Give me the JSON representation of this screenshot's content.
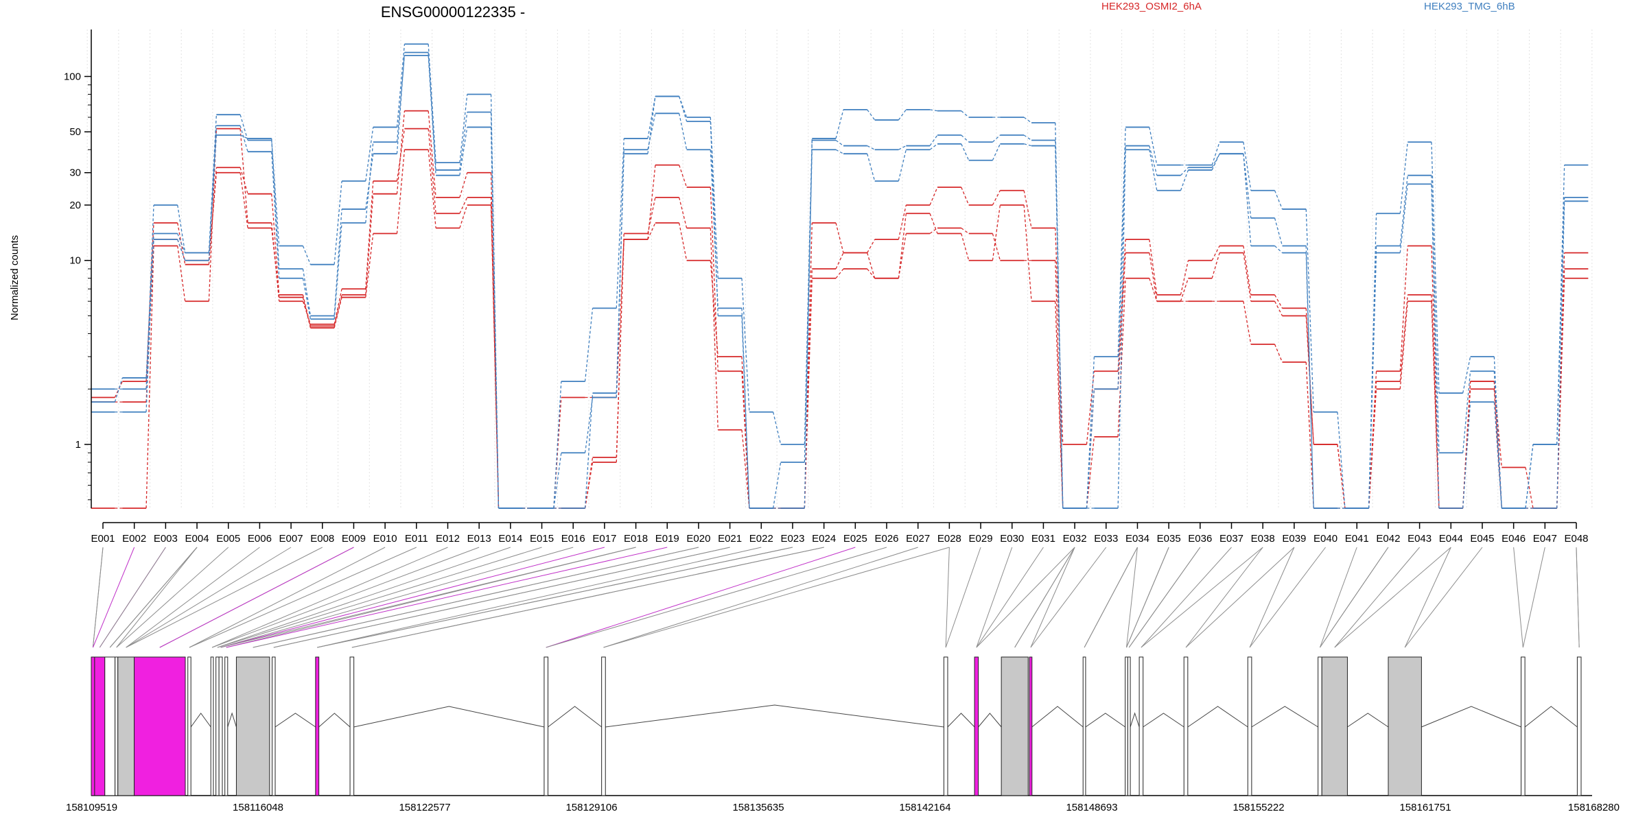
{
  "chart_data": {
    "type": "line",
    "title": "ENSG00000122335 -",
    "ylabel": "Normalized counts",
    "yscale": "log",
    "ylim": [
      0.45,
      180
    ],
    "y_ticks": [
      1,
      10,
      20,
      30,
      50,
      100
    ],
    "y_tick_labels": [
      "1",
      "10",
      "20",
      "30",
      "50",
      "100"
    ],
    "grid": "vertical dotted lines at exon bin boundaries",
    "legend_placement": "top",
    "categories": [
      "E001",
      "E002",
      "E003",
      "E004",
      "E005",
      "E006",
      "E007",
      "E008",
      "E009",
      "E010",
      "E011",
      "E012",
      "E013",
      "E014",
      "E015",
      "E016",
      "E017",
      "E018",
      "E019",
      "E020",
      "E021",
      "E022",
      "E023",
      "E024",
      "E025",
      "E026",
      "E027",
      "E028",
      "E029",
      "E030",
      "E031",
      "E032",
      "E033",
      "E034",
      "E035",
      "E036",
      "E037",
      "E038",
      "E039",
      "E040",
      "E041",
      "E042",
      "E043",
      "E044",
      "E045",
      "E046",
      "E047",
      "E048"
    ],
    "groups": [
      {
        "name": "HEK293_OSMI2_6hA",
        "color": "#d62728"
      },
      {
        "name": "HEK293_TMG_6hB",
        "color": "#3f7fbf"
      }
    ],
    "series": [
      {
        "group": 0,
        "values": [
          1.8,
          2.2,
          16,
          9.5,
          32,
          23,
          6.5,
          4.4,
          6.5,
          23,
          65,
          22,
          30,
          0.45,
          0.45,
          1.8,
          1.8,
          13,
          33,
          25,
          2.5,
          0.45,
          0.45,
          16,
          11,
          13,
          20,
          25,
          20,
          24,
          15,
          1.0,
          2.5,
          13,
          6.5,
          10,
          12,
          6.5,
          5.5,
          1.0,
          0.45,
          2.5,
          12,
          0.45,
          2.2,
          0.75,
          0.45,
          11
        ]
      },
      {
        "group": 0,
        "values": [
          1.7,
          1.7,
          13,
          10,
          30,
          15,
          6.3,
          4.3,
          6.3,
          14,
          40,
          15,
          20,
          0.45,
          0.45,
          0.45,
          0.8,
          14,
          22,
          15,
          1.2,
          0.45,
          0.45,
          8.0,
          9.0,
          8.0,
          14,
          15,
          14,
          10,
          10,
          0.45,
          1.1,
          8.0,
          6.0,
          8.0,
          11,
          6.0,
          5.0,
          1.0,
          0.45,
          2.2,
          6.5,
          0.45,
          2.2,
          0.45,
          0.45,
          9.0
        ]
      },
      {
        "group": 0,
        "values": [
          0.45,
          0.45,
          12,
          6.0,
          52,
          16,
          6.0,
          4.5,
          7.0,
          27,
          52,
          18,
          22,
          0.45,
          0.45,
          0.45,
          0.85,
          13,
          16,
          10,
          3.0,
          0.45,
          0.45,
          9.0,
          11,
          8.0,
          18,
          14,
          10,
          20,
          6.0,
          0.45,
          2.0,
          11,
          6.0,
          6.0,
          6.0,
          3.5,
          2.8,
          0.45,
          0.45,
          2.0,
          6.0,
          0.45,
          2.0,
          0.45,
          0.45,
          8.0
        ]
      },
      {
        "group": 1,
        "values": [
          2.0,
          2.0,
          20,
          11,
          62,
          45,
          12,
          9.5,
          27,
          53,
          150,
          34,
          80,
          0.45,
          0.45,
          2.2,
          5.5,
          46,
          78,
          60,
          8.0,
          1.5,
          1.0,
          46,
          66,
          58,
          66,
          65,
          60,
          60,
          56,
          0.45,
          3.0,
          53,
          33,
          33,
          44,
          24,
          19,
          1.5,
          0.45,
          18,
          44,
          1.9,
          3.0,
          0.45,
          1.0,
          33
        ]
      },
      {
        "group": 1,
        "values": [
          1.5,
          1.5,
          14,
          11,
          48,
          46,
          9.0,
          5.0,
          19,
          38,
          135,
          31,
          64,
          0.45,
          0.45,
          0.9,
          1.8,
          38,
          78,
          57,
          5.0,
          0.45,
          0.45,
          45,
          42,
          40,
          42,
          48,
          44,
          48,
          45,
          0.45,
          2.0,
          42,
          29,
          32,
          38,
          17,
          12,
          0.45,
          0.45,
          12,
          29,
          0.9,
          2.5,
          0.45,
          1.0,
          22
        ]
      },
      {
        "group": 1,
        "values": [
          1.7,
          2.3,
          13,
          10,
          54,
          39,
          8.0,
          4.8,
          16,
          44,
          130,
          29,
          53,
          0.45,
          0.45,
          0.45,
          1.9,
          40,
          63,
          40,
          5.5,
          0.45,
          0.8,
          40,
          38,
          27,
          40,
          43,
          35,
          43,
          42,
          0.45,
          0.45,
          40,
          24,
          31,
          38,
          12,
          11,
          0.45,
          0.45,
          11,
          26,
          0.45,
          1.7,
          0.45,
          0.45,
          21
        ]
      }
    ]
  },
  "gene_model": {
    "coordinate_labels": [
      "158109519",
      "158116048",
      "158122577",
      "158129106",
      "158135635",
      "158142164",
      "158148693",
      "158155222",
      "158161751",
      "158168280"
    ],
    "highlight_color": "#f020e0",
    "exon_fill": "#c8c8c8",
    "bins": [
      {
        "start": 158109519,
        "end": 158109650,
        "hl": true
      },
      {
        "start": 158109650,
        "end": 158110050,
        "hl": true
      },
      {
        "start": 158110050,
        "end": 158110450,
        "hl": false
      },
      {
        "start": 158110450,
        "end": 158110560,
        "hl": false
      },
      {
        "start": 158110560,
        "end": 158111200,
        "hl": false
      },
      {
        "start": 158111200,
        "end": 158113200,
        "hl": true
      },
      {
        "start": 158113300,
        "end": 158113420,
        "hl": false
      },
      {
        "start": 158114200,
        "end": 158114300,
        "hl": false
      },
      {
        "start": 158114400,
        "end": 158114520,
        "hl": false
      },
      {
        "start": 158114520,
        "end": 158114650,
        "hl": false
      },
      {
        "start": 158114750,
        "end": 158114860,
        "hl": false
      },
      {
        "start": 158115200,
        "end": 158116500,
        "hl": false
      },
      {
        "start": 158116600,
        "end": 158116720,
        "hl": false
      },
      {
        "start": 158118300,
        "end": 158118430,
        "hl": true
      },
      {
        "start": 158119650,
        "end": 158119800,
        "hl": false
      },
      {
        "start": 158127250,
        "end": 158127400,
        "hl": false
      },
      {
        "start": 158129500,
        "end": 158129650,
        "hl": false
      },
      {
        "start": 158142900,
        "end": 158143050,
        "hl": false
      },
      {
        "start": 158144100,
        "end": 158144250,
        "hl": true
      },
      {
        "start": 158145150,
        "end": 158146200,
        "hl": false
      },
      {
        "start": 158146250,
        "end": 158146350,
        "hl": true
      },
      {
        "start": 158148350,
        "end": 158148450,
        "hl": false
      },
      {
        "start": 158150000,
        "end": 158150100,
        "hl": false
      },
      {
        "start": 158150100,
        "end": 158150200,
        "hl": false
      },
      {
        "start": 158150550,
        "end": 158150700,
        "hl": false
      },
      {
        "start": 158152300,
        "end": 158152450,
        "hl": false
      },
      {
        "start": 158154800,
        "end": 158154950,
        "hl": false
      },
      {
        "start": 158157550,
        "end": 158157700,
        "hl": false
      },
      {
        "start": 158157700,
        "end": 158158700,
        "hl": false
      },
      {
        "start": 158160300,
        "end": 158161600,
        "hl": false
      },
      {
        "start": 158165500,
        "end": 158165650,
        "hl": false
      },
      {
        "start": 158167700,
        "end": 158167850,
        "hl": false
      }
    ],
    "bin_to_label": [
      0,
      0,
      1,
      2,
      2,
      3,
      3,
      3,
      4,
      5,
      6,
      7,
      8,
      8,
      9,
      10,
      11,
      12,
      13,
      14,
      15,
      16,
      17,
      17,
      18,
      19,
      19,
      20,
      20,
      21,
      22,
      22,
      23,
      23,
      24,
      25,
      26,
      27,
      27,
      28,
      29,
      30,
      31,
      31,
      31,
      31,
      32,
      33,
      33,
      33,
      34,
      34,
      35,
      35,
      36,
      37,
      37,
      38,
      38,
      39,
      40,
      41,
      41,
      42,
      43,
      43,
      44,
      45,
      46,
      47,
      47
    ],
    "connector_highlight": [
      false,
      false,
      true,
      true,
      false,
      false,
      false,
      false,
      false,
      false,
      false,
      false,
      false,
      true,
      false,
      false,
      false,
      false,
      false,
      false,
      false,
      true,
      false,
      false,
      true,
      false,
      false,
      false,
      false,
      false,
      false,
      false,
      false,
      false,
      true,
      false,
      false,
      false,
      false,
      false,
      false,
      false,
      false,
      false,
      false,
      false,
      false,
      false,
      false,
      false,
      false,
      false,
      false,
      false,
      false,
      false,
      false,
      false,
      false,
      false,
      false,
      false,
      false,
      false,
      false,
      false,
      false,
      false,
      false,
      false,
      false
    ]
  }
}
